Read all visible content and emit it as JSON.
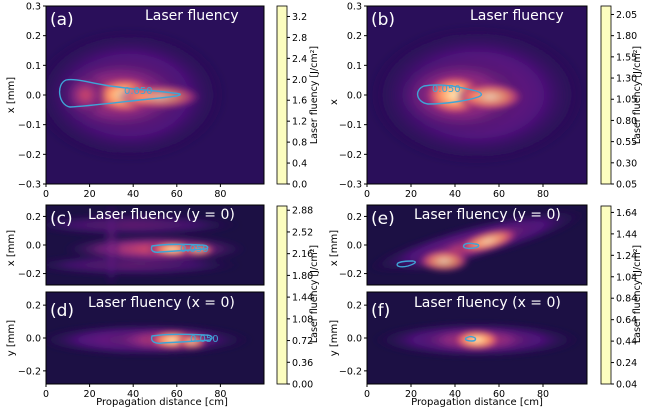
{
  "figure": {
    "xlabel": "Propagation distance [cm]",
    "cbar_label": "Laser fluency [J/cm²]"
  },
  "colors": {
    "colormap": [
      "#000004",
      "#1c1044",
      "#4f127b",
      "#812581",
      "#b5367a",
      "#e55064",
      "#fb8761",
      "#fec287",
      "#fcfdbf"
    ],
    "contour": "#3fa4d6"
  },
  "chart_data": [
    {
      "id": "a",
      "panel_label": "(a)",
      "title": "Laser fluency",
      "type": "heatmap",
      "xlabel": "",
      "ylabel": "x [mm]",
      "xlim": [
        0,
        100
      ],
      "ylim": [
        -0.3,
        0.3
      ],
      "xticks": [
        "0",
        "20",
        "40",
        "60",
        "80"
      ],
      "yticks": [
        "0.3",
        "0.2",
        "0.1",
        "0.0",
        "−0.1",
        "−0.2",
        "−0.3"
      ],
      "colorbar_ticks": [
        "3.2",
        "2.8",
        "2.4",
        "2.0",
        "1.6",
        "1.2",
        "0.8",
        "0.4",
        "0.0"
      ],
      "colorbar_range": [
        0.0,
        3.4
      ],
      "contour_label": "0.050"
    },
    {
      "id": "b",
      "panel_label": "(b)",
      "title": "Laser fluency",
      "type": "heatmap",
      "xlabel": "",
      "ylabel": "x",
      "xlim": [
        0,
        100
      ],
      "ylim": [
        -0.3,
        0.3
      ],
      "xticks": [
        "0",
        "20",
        "40",
        "60",
        "80"
      ],
      "yticks": [
        "0.3",
        "0.2",
        "0.1",
        "0.0",
        "−0.1",
        "−0.2",
        "−0.3"
      ],
      "colorbar_ticks": [
        "2.05",
        "1.80",
        "1.55",
        "1.30",
        "1.05",
        "0.80",
        "0.55",
        "0.30",
        "0.05"
      ],
      "colorbar_range": [
        0.05,
        2.15
      ],
      "contour_label": "0.050"
    },
    {
      "id": "c",
      "panel_label": "(c)",
      "title": "Laser fluency (y = 0)",
      "type": "heatmap",
      "ylabel": "x [mm]",
      "xlim": [
        0,
        100
      ],
      "ylim": [
        -0.28,
        0.28
      ],
      "yticks": [
        "0.2",
        "0.0",
        "−0.2"
      ],
      "contour_label": "0.050"
    },
    {
      "id": "d",
      "panel_label": "(d)",
      "title": "Laser fluency (x = 0)",
      "type": "heatmap",
      "ylabel": "y [mm]",
      "xlim": [
        0,
        100
      ],
      "ylim": [
        -0.28,
        0.28
      ],
      "xticks": [
        "0",
        "20",
        "40",
        "60",
        "80"
      ],
      "yticks": [
        "0.2",
        "0.0",
        "−0.2"
      ],
      "contour_label": "0.050",
      "colorbar_ticks": [
        "2.88",
        "2.52",
        "2.16",
        "1.80",
        "1.44",
        "1.08",
        "0.72",
        "0.36",
        "0.00"
      ],
      "colorbar_range": [
        0.0,
        2.95
      ]
    },
    {
      "id": "e",
      "panel_label": "(e)",
      "title": "Laser fluency (y = 0)",
      "type": "heatmap",
      "ylabel": "x [mm]",
      "xlim": [
        0,
        100
      ],
      "ylim": [
        -0.28,
        0.28
      ],
      "yticks": [
        "0.2",
        "0.0",
        "−0.2"
      ]
    },
    {
      "id": "f",
      "panel_label": "(f)",
      "title": "Laser fluency (x = 0)",
      "type": "heatmap",
      "ylabel": "y [mm]",
      "xlim": [
        0,
        100
      ],
      "ylim": [
        -0.28,
        0.28
      ],
      "xticks": [
        "0",
        "20",
        "40",
        "60",
        "80"
      ],
      "yticks": [
        "0.2",
        "0.0",
        "−0.2"
      ],
      "colorbar_ticks": [
        "1.64",
        "1.44",
        "1.24",
        "1.04",
        "0.84",
        "0.64",
        "0.44",
        "0.24",
        "0.04"
      ],
      "colorbar_range": [
        0.04,
        1.7
      ]
    }
  ]
}
